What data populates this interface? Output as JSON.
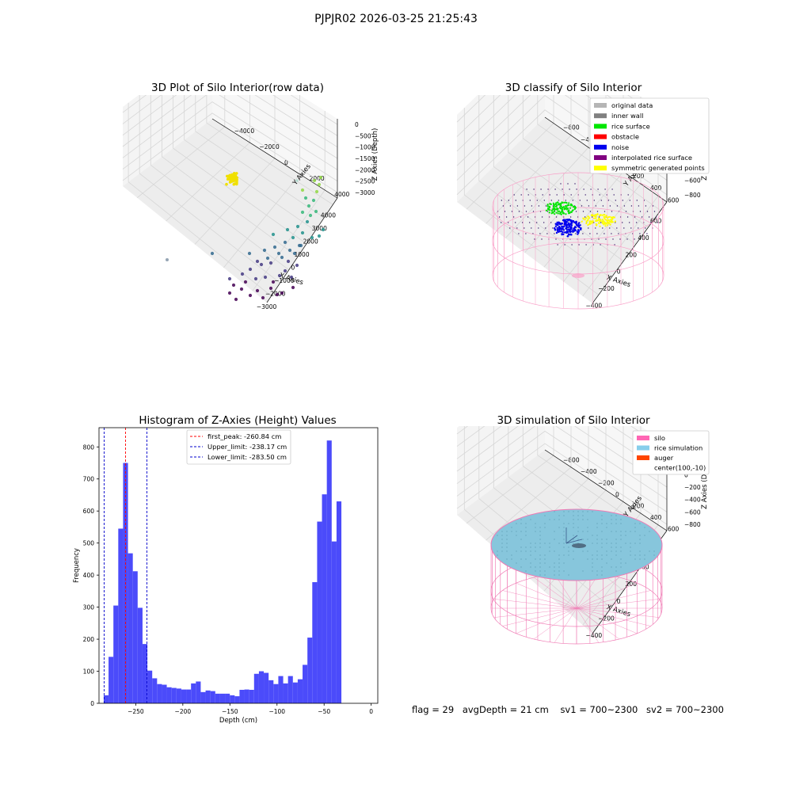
{
  "suptitle": "PJPJR02 2026-03-25 21:25:43",
  "footer": {
    "flag": "flag = 29",
    "avg_depth": "avgDepth = 21 cm",
    "sv1": "sv1 = 700~2300",
    "sv2": "sv2 = 700~2300"
  },
  "chart_data": [
    {
      "type": "scatter",
      "projection": "3d",
      "title": "3D Plot of Silo Interior(row data)",
      "xlabel": "X Axies",
      "ylabel": "Y Axies",
      "zlabel": "Z Axies (Depth)",
      "x_ticks": [
        "−3000",
        "−2000",
        "−1000",
        "0",
        "1000",
        "2000",
        "3000",
        "4000"
      ],
      "y_ticks": [
        "−4000",
        "−2000",
        "0",
        "2000",
        "4000"
      ],
      "z_ticks": [
        "0",
        "−500",
        "−1000",
        "−1500",
        "−2000",
        "−2500",
        "−3000"
      ],
      "colormap": "viridis",
      "highlight_color": "#f0e000",
      "grid": true
    },
    {
      "type": "scatter",
      "projection": "3d",
      "title": "3D classify of Silo Interior",
      "xlabel": "X Axies",
      "ylabel": "Y Axies",
      "zlabel": "Z Axies (Depth)",
      "x_ticks": [
        "−400",
        "−200",
        "0",
        "200",
        "400",
        "600"
      ],
      "y_ticks": [
        "−600",
        "−400",
        "−200",
        "0",
        "200",
        "400",
        "600"
      ],
      "z_ticks": [
        "200",
        "0",
        "−200",
        "−400",
        "−600",
        "−800"
      ],
      "legend_position": "top-right",
      "legend": [
        {
          "label": "original data",
          "color": "#b5b5b5"
        },
        {
          "label": "inner wall",
          "color": "#808080"
        },
        {
          "label": "rice surface",
          "color": "#00e600"
        },
        {
          "label": "obstacle",
          "color": "#ff0000"
        },
        {
          "label": "noise",
          "color": "#0000ee"
        },
        {
          "label": "interpolated rice surface",
          "color": "#800080"
        },
        {
          "label": "symmetric generated points",
          "color": "#ffff00"
        }
      ],
      "silo_color": "#f9a0c8",
      "grid": true
    },
    {
      "type": "bar",
      "subtype": "histogram",
      "title": "Histogram of Z-Axies (Height) Values",
      "xlabel": "Depth (cm)",
      "ylabel": "Frequency",
      "xlim": [
        -289,
        7
      ],
      "ylim": [
        0,
        860
      ],
      "bin_start": -284,
      "bin_width": 5.15,
      "values": [
        25,
        145,
        305,
        545,
        750,
        468,
        412,
        298,
        185,
        102,
        78,
        60,
        58,
        50,
        48,
        46,
        43,
        43,
        62,
        68,
        35,
        40,
        38,
        30,
        30,
        30,
        25,
        22,
        42,
        43,
        42,
        92,
        100,
        95,
        72,
        60,
        85,
        62,
        85,
        65,
        75,
        120,
        205,
        378,
        567,
        652,
        820,
        505,
        630
      ],
      "x_ticks": [
        -250,
        -200,
        -150,
        -100,
        -50,
        0
      ],
      "y_ticks": [
        0,
        100,
        200,
        300,
        400,
        500,
        600,
        700,
        800
      ],
      "bar_color": "#4b4bfa",
      "vlines": [
        {
          "value": -260.84,
          "label": "first_peak: -260.84 cm",
          "color": "#ff0000"
        },
        {
          "value": -238.17,
          "label": "Upper_limit: -238.17 cm",
          "color": "#0000cc"
        },
        {
          "value": -283.5,
          "label": "Lower_limit: -283.50 cm",
          "color": "#0000cc"
        }
      ],
      "legend_position": "top-center"
    },
    {
      "type": "area",
      "projection": "3d",
      "title": "3D simulation of Silo Interior",
      "xlabel": "X Axies",
      "ylabel": "Y Axies",
      "zlabel": "Z Axies (Depth)",
      "x_ticks": [
        "−400",
        "−200",
        "0",
        "200",
        "400",
        "600"
      ],
      "y_ticks": [
        "−600",
        "−400",
        "−200",
        "0",
        "200",
        "400",
        "600"
      ],
      "z_ticks": [
        "400",
        "200",
        "0",
        "−200",
        "−400",
        "−600",
        "−800"
      ],
      "legend_position": "top-right",
      "legend": [
        {
          "label": "silo",
          "color": "#ff66b4"
        },
        {
          "label": "rice simulation",
          "color": "#87ceeb"
        },
        {
          "label": "auger",
          "color": "#ff4500"
        },
        {
          "label": "center(100,-10)",
          "color": ""
        }
      ],
      "grid": true
    }
  ]
}
